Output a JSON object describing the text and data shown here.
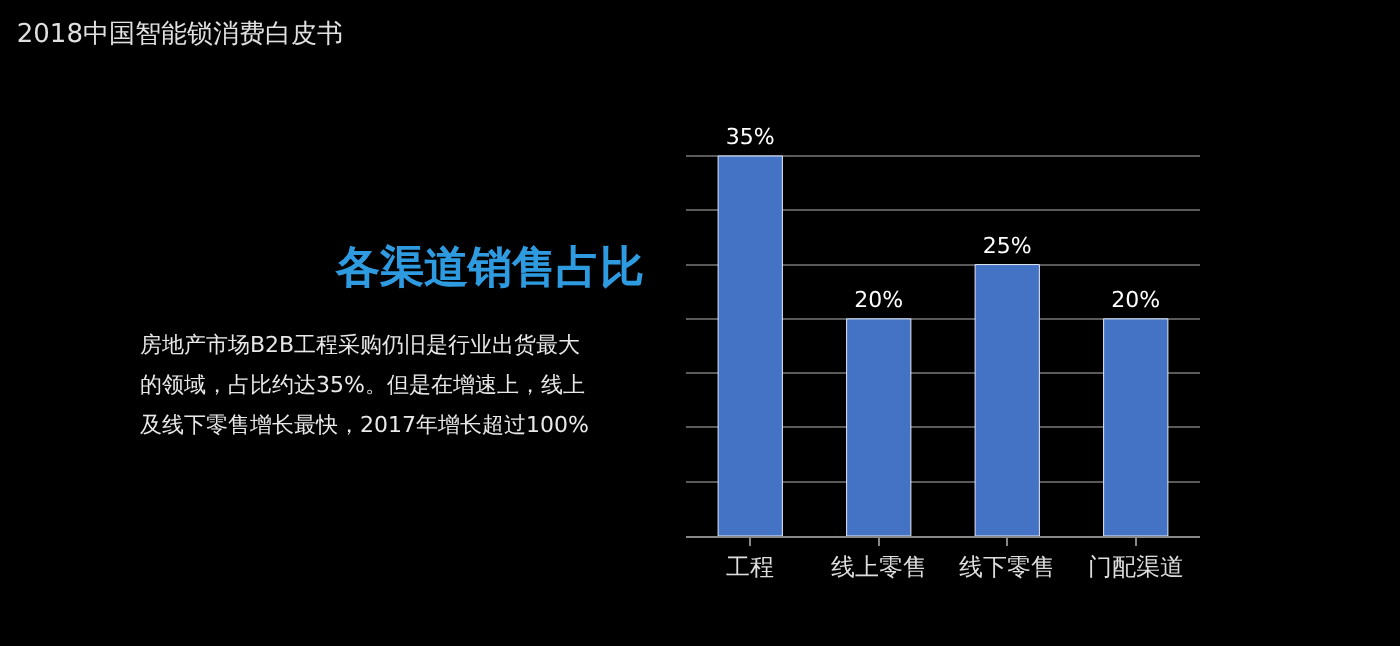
{
  "chart_data": {
    "type": "bar",
    "title": "2018中国智能锁消费白皮书",
    "subtitle": "各渠道销售占比",
    "annotations": [
      "房地产市场B2B工程采购仍旧是行业出货最大",
      "的领域，占比约达35%。但是在增速上，线上",
      "及线下零售增长最快，2017年增长超过100%"
    ],
    "categories": [
      "工程",
      "线上零售",
      "线下零售",
      "门配渠道"
    ],
    "values": [
      35,
      20,
      25,
      20
    ],
    "value_labels": [
      "35%",
      "20%",
      "25%",
      "20%"
    ],
    "color": "#4472c4",
    "grid": "y",
    "tick_labels": "x"
  }
}
